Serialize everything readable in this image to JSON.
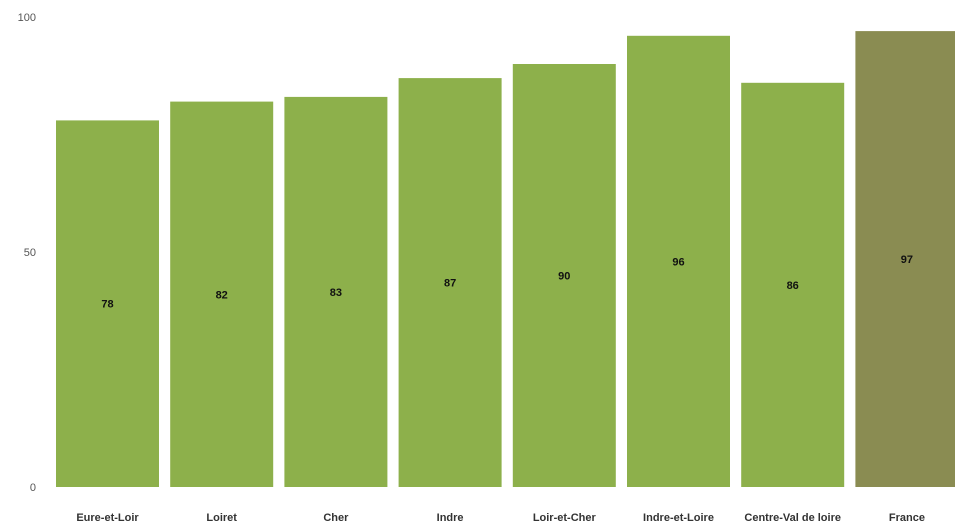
{
  "chart_data": {
    "type": "bar",
    "title": "",
    "xlabel": "",
    "ylabel": "",
    "ylim": [
      0,
      100
    ],
    "yticks": [
      0,
      50,
      100
    ],
    "grid": false,
    "categories": [
      "Eure-et-Loir",
      "Loiret",
      "Cher",
      "Indre",
      "Loir-et-Cher",
      "Indre-et-Loire",
      "Centre-Val de loire",
      "France"
    ],
    "values": [
      78,
      82,
      83,
      87,
      90,
      96,
      86,
      97
    ],
    "colors": [
      "#8db04b",
      "#8db04b",
      "#8db04b",
      "#8db04b",
      "#8db04b",
      "#8db04b",
      "#8db04b",
      "#8a8c52"
    ]
  }
}
